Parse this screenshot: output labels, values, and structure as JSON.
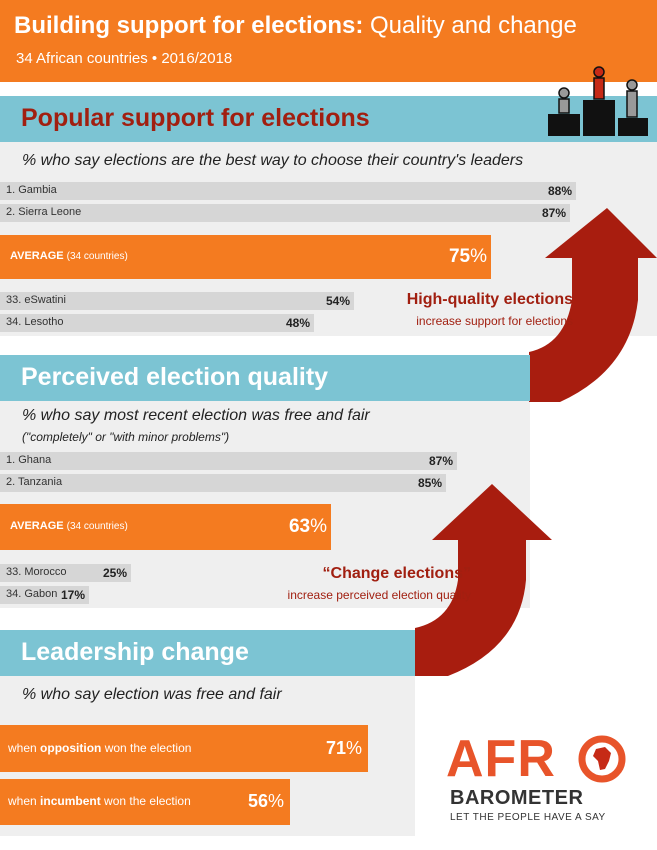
{
  "header": {
    "title_bold": "Building support for elections:",
    "title_light": "Quality and change",
    "subtitle": "34 African countries • 2016/2018"
  },
  "sections": [
    {
      "title": "Popular support for elections",
      "question": "% who say elections are the best way to choose their country's leaders",
      "top": [
        {
          "label": "1. Gambia",
          "value_label": "88%"
        },
        {
          "label": "2. Sierra Leone",
          "value_label": "87%"
        }
      ],
      "average": {
        "label": "AVERAGE",
        "sub": "(34 countries)",
        "value_label": "75",
        "unit": "%"
      },
      "bottom": [
        {
          "label": "33. eSwatini",
          "value_label": "54%"
        },
        {
          "label": "34. Lesotho",
          "value_label": "48%"
        }
      ]
    },
    {
      "title": "Perceived election quality",
      "question": "% who say most recent election was free and fair",
      "note": "(\"completely\" or \"with minor problems\")",
      "top": [
        {
          "label": "1. Ghana",
          "value_label": "87%"
        },
        {
          "label": "2. Tanzania",
          "value_label": "85%"
        }
      ],
      "average": {
        "label": "AVERAGE",
        "sub": "(34 countries)",
        "value_label": "63",
        "unit": "%"
      },
      "bottom": [
        {
          "label": "33. Morocco",
          "value_label": "25%"
        },
        {
          "label": "34. Gabon",
          "value_label": "17%"
        }
      ]
    },
    {
      "title": "Leadership change",
      "question": "% who say election was free and fair",
      "bars": [
        {
          "prefix": "when ",
          "bold": "opposition",
          "suffix": " won the election",
          "value_label": "71",
          "unit": "%"
        },
        {
          "prefix": "when ",
          "bold": "incumbent",
          "suffix": " won the election",
          "value_label": "56",
          "unit": "%"
        }
      ]
    }
  ],
  "arrows": [
    {
      "title": "High-quality elections",
      "subtitle": "increase support for elections"
    },
    {
      "title": "“Change elections”",
      "subtitle": "increase perceived election quality"
    }
  ],
  "logo": {
    "text_afr": "AFR",
    "text_barometer": "BAROMETER",
    "tagline": "LET THE PEOPLE HAVE A SAY"
  },
  "icons": {
    "podium": "podium-icon",
    "africa": "africa-map-icon"
  },
  "colors": {
    "orange": "#f47b20",
    "band": "#7cc4d3",
    "dark_red": "#a11f10",
    "panel": "#efefef",
    "bar_grey": "#d6d6d6"
  },
  "chart_data": [
    {
      "type": "bar",
      "title": "Popular support for elections",
      "categories": [
        "1. Gambia",
        "2. Sierra Leone",
        "AVERAGE (34 countries)",
        "33. eSwatini",
        "34. Lesotho"
      ],
      "values": [
        88,
        87,
        75,
        54,
        48
      ],
      "xlim": [
        0,
        100
      ]
    },
    {
      "type": "bar",
      "title": "Perceived election quality",
      "categories": [
        "1. Ghana",
        "2. Tanzania",
        "AVERAGE (34 countries)",
        "33. Morocco",
        "34. Gabon"
      ],
      "values": [
        87,
        85,
        63,
        25,
        17
      ],
      "xlim": [
        0,
        100
      ]
    },
    {
      "type": "bar",
      "title": "Leadership change",
      "categories": [
        "when opposition won the election",
        "when incumbent won the election"
      ],
      "values": [
        71,
        56
      ],
      "xlim": [
        0,
        100
      ]
    }
  ]
}
